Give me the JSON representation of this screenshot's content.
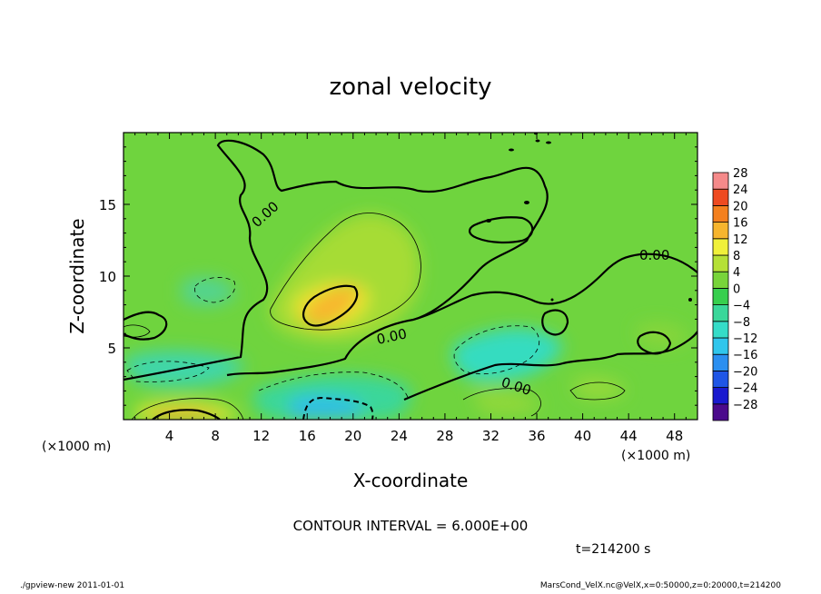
{
  "chart_data": {
    "type": "heatmap",
    "title": "zonal velocity",
    "xlabel": "X-coordinate",
    "ylabel": "Z-coordinate",
    "x_unit_left": "(×1000 m)",
    "x_unit_right": "(×1000 m)",
    "xlim": [
      0,
      50
    ],
    "ylim": [
      0,
      20
    ],
    "x_ticks": [
      4,
      8,
      12,
      16,
      20,
      24,
      28,
      32,
      36,
      40,
      44,
      48
    ],
    "y_ticks": [
      5,
      10,
      15
    ],
    "colorbar": {
      "levels": [
        -28,
        -24,
        -20,
        -16,
        -12,
        -8,
        -4,
        0,
        4,
        8,
        12,
        16,
        20,
        24,
        28
      ],
      "colors": [
        "#4b0a8c",
        "#1a1acf",
        "#1f56e6",
        "#2b8ff0",
        "#30c6ec",
        "#35dcc8",
        "#3ad79a",
        "#37cf4e",
        "#78d43a",
        "#b5e036",
        "#f0f03a",
        "#f7b52e",
        "#f4801e",
        "#ee4a20",
        "#f58a8a"
      ]
    },
    "contour_labels": [
      "0.00",
      "0.00",
      "0.00",
      "0.00"
    ],
    "contour_interval_text": "CONTOUR INTERVAL = 6.000E+00",
    "time_text": "t=214200 s"
  },
  "footer": {
    "left": "./gpview-new  2011-01-01",
    "right": "MarsCond_VelX.nc@VelX,x=0:50000,z=0:20000,t=214200"
  }
}
